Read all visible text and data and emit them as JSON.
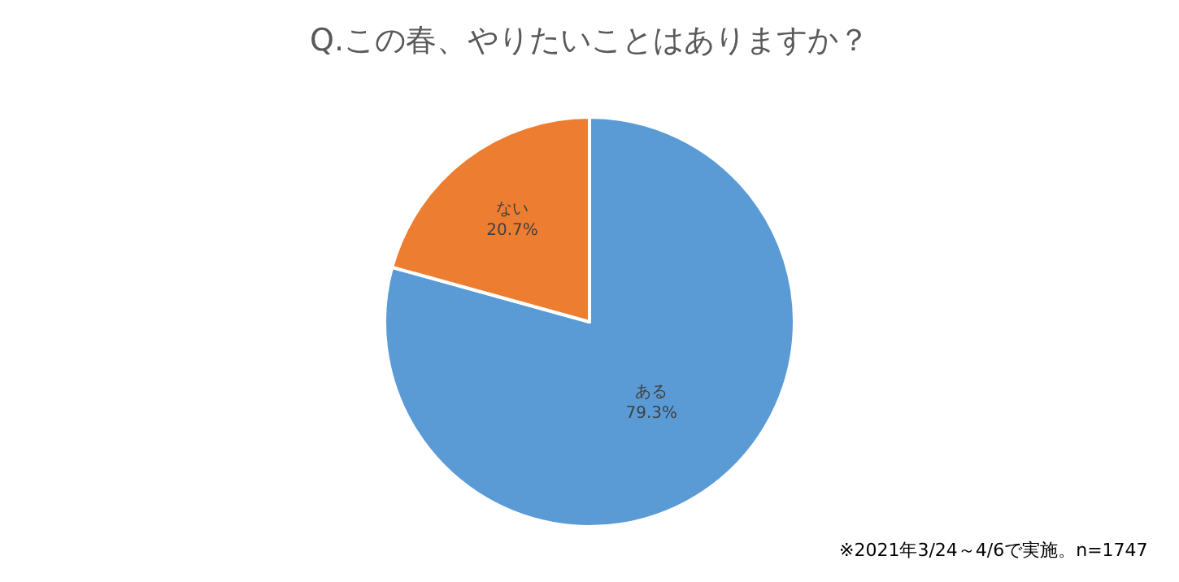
{
  "chart_data": {
    "type": "pie",
    "title": "Q.この春、やりたいことはありますか？",
    "categories": [
      "ある",
      "ない"
    ],
    "values": [
      79.3,
      20.7
    ],
    "colors": [
      "#5b9bd5",
      "#ed7d31"
    ],
    "value_labels": [
      "79.3%",
      "20.7%"
    ],
    "annotations": [
      "※2021年3/24～4/6で実施。n=1747"
    ],
    "legend": false
  }
}
